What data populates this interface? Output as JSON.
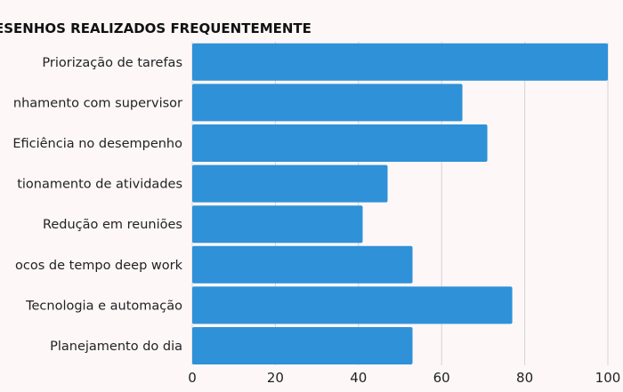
{
  "chart_data": {
    "type": "bar",
    "orientation": "horizontal",
    "title": "ESENHOS REALIZADOS FREQUENTEMENTE",
    "categories": [
      "Priorização de tarefas",
      "nhamento com supervisor",
      "Eficiência no desempenho",
      "tionamento de atividades",
      "Redução em reuniões",
      "ocos de tempo deep work",
      "Tecnologia e automação",
      "Planejamento do dia"
    ],
    "values": [
      100,
      65,
      71,
      47,
      41,
      53,
      77,
      53
    ],
    "xticks": [
      "0",
      "20",
      "40",
      "60",
      "80",
      "100"
    ],
    "xlim": [
      0,
      100
    ],
    "grid": true,
    "colors": {
      "bar": "#2f91d8",
      "grid": "#d4d4d4",
      "background": "#fdf7f8"
    }
  }
}
